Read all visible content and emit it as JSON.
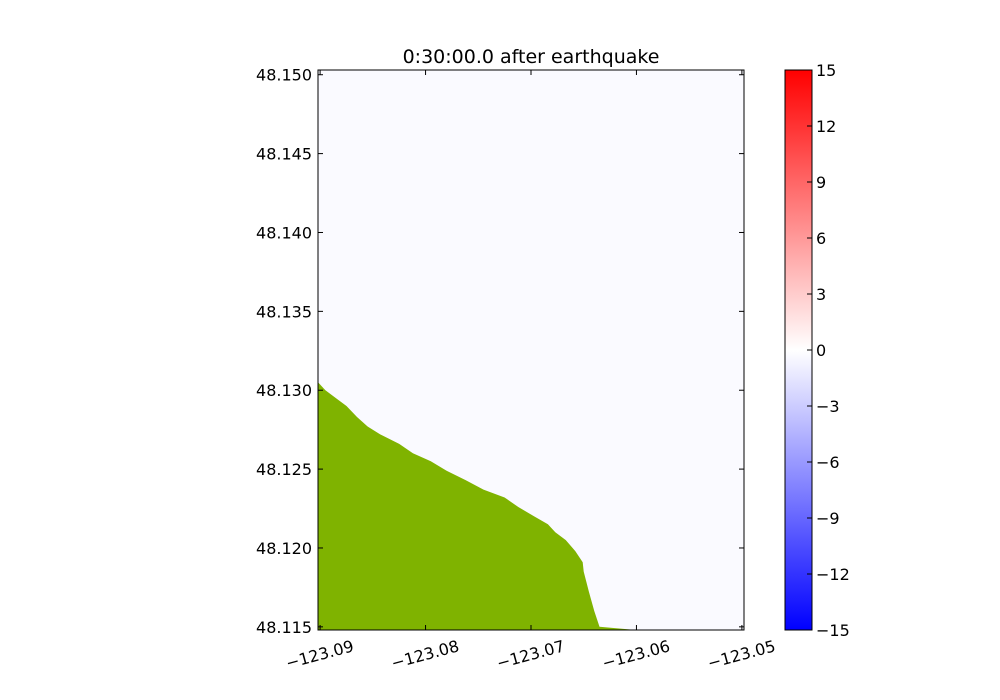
{
  "chart_data": {
    "type": "heatmap",
    "title": "0:30:00.0 after earthquake",
    "xlabel": "",
    "ylabel": "",
    "x_ticks": [
      "−123.09",
      "−123.08",
      "−123.07",
      "−123.06",
      "−123.05"
    ],
    "x_tick_values": [
      -123.09,
      -123.08,
      -123.07,
      -123.06,
      -123.05
    ],
    "y_ticks": [
      "48.115",
      "48.120",
      "48.125",
      "48.130",
      "48.135",
      "48.140",
      "48.145",
      "48.150"
    ],
    "y_tick_values": [
      48.115,
      48.12,
      48.125,
      48.13,
      48.135,
      48.14,
      48.145,
      48.15
    ],
    "xlim": [
      -123.0902,
      -123.0498
    ],
    "ylim": [
      48.1148,
      48.1503
    ],
    "colorbar": {
      "ticks": [
        "15",
        "12",
        "9",
        "6",
        "3",
        "0",
        "−3",
        "−6",
        "−9",
        "−12",
        "−15"
      ],
      "tick_values": [
        15,
        12,
        9,
        6,
        3,
        0,
        -3,
        -6,
        -9,
        -12,
        -15
      ],
      "range": [
        -15,
        15
      ],
      "colormap": "blue-white-red",
      "low_color": "#0000ff",
      "mid_color": "#ffffff",
      "high_color": "#ff0000"
    },
    "water_color": "#fafaff",
    "land_color": "#7fb300",
    "land_boundary": [
      [
        -123.0902,
        48.1305
      ],
      [
        -123.0895,
        48.13
      ],
      [
        -123.0885,
        48.1295
      ],
      [
        -123.0875,
        48.129
      ],
      [
        -123.0865,
        48.1283
      ],
      [
        -123.0855,
        48.1277
      ],
      [
        -123.0843,
        48.1272
      ],
      [
        -123.0825,
        48.1266
      ],
      [
        -123.0812,
        48.126
      ],
      [
        -123.0795,
        48.1255
      ],
      [
        -123.078,
        48.1249
      ],
      [
        -123.0762,
        48.1243
      ],
      [
        -123.0745,
        48.1237
      ],
      [
        -123.0725,
        48.1232
      ],
      [
        -123.0712,
        48.1226
      ],
      [
        -123.0697,
        48.122
      ],
      [
        -123.0684,
        48.1215
      ],
      [
        -123.0677,
        48.121
      ],
      [
        -123.0667,
        48.1205
      ],
      [
        -123.0658,
        48.1198
      ],
      [
        -123.0651,
        48.1191
      ],
      [
        -123.065,
        48.1185
      ],
      [
        -123.0645,
        48.1172
      ],
      [
        -123.064,
        48.116
      ],
      [
        -123.0635,
        48.115
      ],
      [
        -123.06,
        48.1148
      ],
      [
        -123.0902,
        48.1148
      ]
    ]
  }
}
